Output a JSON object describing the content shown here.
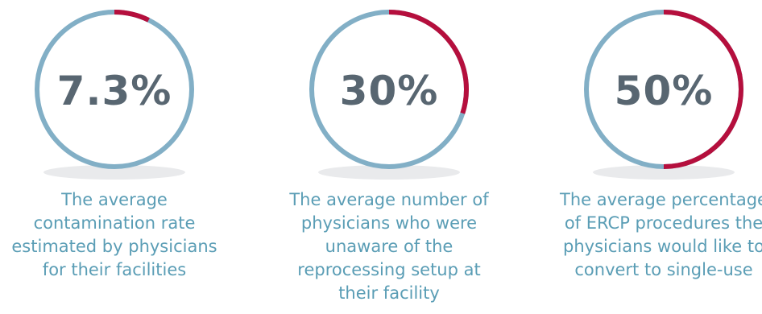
{
  "colors": {
    "track": "#82afc6",
    "highlight": "#b50f3d",
    "value_text": "#586671",
    "caption_text": "#5a9db5"
  },
  "chart_data": [
    {
      "type": "donut",
      "value": 7.3,
      "max": 100,
      "label": "7.3%",
      "caption_lines": [
        "The average",
        "contamination rate",
        "estimated by physicians",
        "for their facilities"
      ]
    },
    {
      "type": "donut",
      "value": 30,
      "max": 100,
      "label": "30%",
      "caption_lines": [
        "The average number of",
        "physicians who were",
        "unaware of the",
        "reprocessing setup at",
        "their facility"
      ]
    },
    {
      "type": "donut",
      "value": 50,
      "max": 100,
      "label": "50%",
      "caption_lines": [
        "The average percentage",
        "of ERCP procedures the",
        "physicians would like to",
        "convert to single-use"
      ]
    }
  ]
}
